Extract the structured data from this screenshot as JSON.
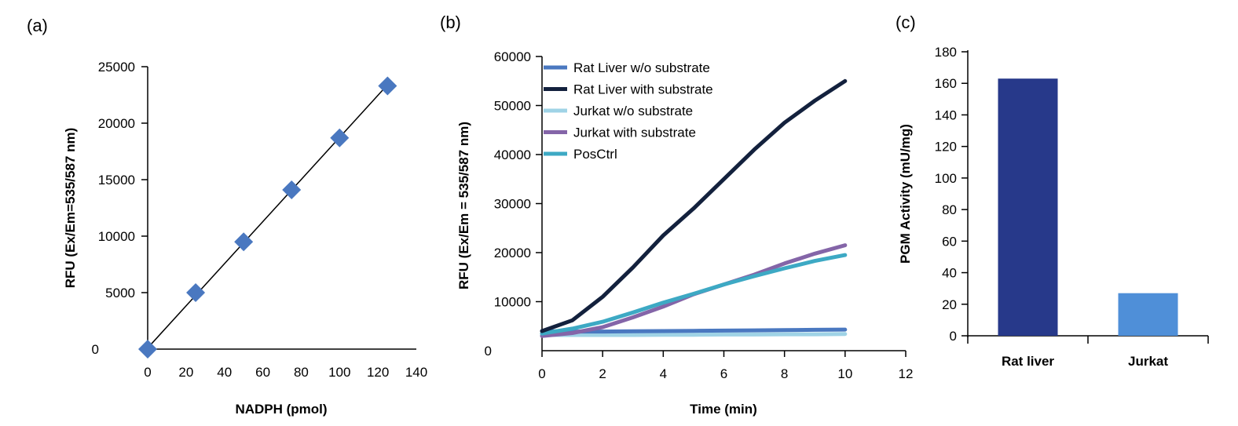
{
  "chart_data": [
    {
      "panel": "(a)",
      "type": "scatter",
      "xlabel": "NADPH (pmol)",
      "ylabel": "RFU (Ex/Em=535/587 nm)",
      "xlim": [
        0,
        140
      ],
      "ylim": [
        0,
        25000
      ],
      "x_ticks": [
        0,
        20,
        40,
        60,
        80,
        100,
        120,
        140
      ],
      "y_ticks": [
        0,
        5000,
        10000,
        15000,
        20000,
        25000
      ],
      "points": [
        {
          "x": 0,
          "y": 0
        },
        {
          "x": 25,
          "y": 5000
        },
        {
          "x": 50,
          "y": 9500
        },
        {
          "x": 75,
          "y": 14100
        },
        {
          "x": 100,
          "y": 18700
        },
        {
          "x": 125,
          "y": 23300
        }
      ],
      "trendline": [
        [
          0,
          100
        ],
        [
          125,
          23400
        ]
      ],
      "marker_color": "#4a78c0",
      "grid": false
    },
    {
      "panel": "(b)",
      "type": "line",
      "xlabel": "Time (min)",
      "ylabel": "RFU (Ex/Em = 535/587 nm)",
      "xlim": [
        0,
        12
      ],
      "ylim": [
        0,
        60000
      ],
      "x_ticks": [
        0,
        2,
        4,
        6,
        8,
        10,
        12
      ],
      "y_ticks": [
        0,
        10000,
        20000,
        30000,
        40000,
        50000,
        60000
      ],
      "x": [
        0,
        1,
        2,
        3,
        4,
        5,
        6,
        7,
        8,
        9,
        10
      ],
      "series": [
        {
          "name": "Rat Liver w/o substrate",
          "color": "#4a78c0",
          "values": [
            4000,
            3900,
            3900,
            3950,
            4000,
            4050,
            4100,
            4150,
            4200,
            4250,
            4300
          ]
        },
        {
          "name": "Rat Liver with substrate",
          "color": "#13213d",
          "values": [
            4000,
            6200,
            11000,
            17000,
            23500,
            29000,
            35000,
            41000,
            46500,
            51000,
            55000
          ]
        },
        {
          "name": "Jurkat w/o substrate",
          "color": "#9fd3e6",
          "values": [
            3200,
            3200,
            3200,
            3200,
            3250,
            3250,
            3300,
            3300,
            3350,
            3350,
            3400
          ]
        },
        {
          "name": "Jurkat with substrate",
          "color": "#8465a8",
          "values": [
            3000,
            3600,
            4800,
            6800,
            9000,
            11500,
            13500,
            15500,
            17800,
            19800,
            21500
          ]
        },
        {
          "name": "PosCtrl",
          "color": "#3da9c4",
          "values": [
            3500,
            4500,
            5900,
            7800,
            9800,
            11600,
            13500,
            15200,
            16800,
            18300,
            19500
          ]
        }
      ],
      "legend": "top-left",
      "grid": false
    },
    {
      "panel": "(c)",
      "type": "bar",
      "ylabel": "PGM Activity (mU/mg)",
      "categories": [
        "Rat liver",
        "Jurkat"
      ],
      "values": [
        163,
        27
      ],
      "colors": [
        "#27398a",
        "#4f8fd8"
      ],
      "ylim": [
        0,
        180
      ],
      "y_ticks": [
        0,
        20,
        40,
        60,
        80,
        100,
        120,
        140,
        160,
        180
      ],
      "grid": false
    }
  ]
}
